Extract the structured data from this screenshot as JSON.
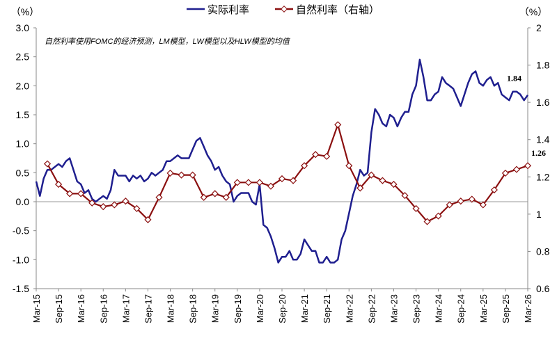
{
  "chart_data": {
    "type": "line",
    "y_axis_label": "（%）",
    "y2_axis_label": "（%）",
    "annotation": "自然利率使用FOMC的经济预测，LM模型，LW模型以及HLW模型的均值",
    "ylim": [
      -1.5,
      3.0
    ],
    "yticks": [
      {
        "value": -1.5,
        "label": "-1.5"
      },
      {
        "value": -1.0,
        "label": "-1.0"
      },
      {
        "value": -0.5,
        "label": "-0.5"
      },
      {
        "value": 0.0,
        "label": "0.0"
      },
      {
        "value": 0.5,
        "label": "0.5"
      },
      {
        "value": 1.0,
        "label": "1.0"
      },
      {
        "value": 1.5,
        "label": "1.5"
      },
      {
        "value": 2.0,
        "label": "2.0"
      },
      {
        "value": 2.5,
        "label": "2.5"
      },
      {
        "value": 3.0,
        "label": "3.0"
      }
    ],
    "y2lim": [
      0.6,
      2
    ],
    "y2ticks": [
      0.6,
      0.8,
      1,
      1.2,
      1.4,
      1.6,
      1.8,
      2
    ],
    "xticks": [
      "Mar-15",
      "Sep-15",
      "Mar-16",
      "Sep-16",
      "Mar-17",
      "Sep-17",
      "Mar-18",
      "Sep-18",
      "Mar-19",
      "Sep-19",
      "Mar-20",
      "Sep-20",
      "Mar-21",
      "Sep-21",
      "Mar-22",
      "Sep-22",
      "Mar-23",
      "Sep-23",
      "Mar-24",
      "Sep-24",
      "Mar-25",
      "Sep-25",
      "Mar-26"
    ],
    "legend": "top",
    "series": [
      {
        "name": "实际利率",
        "color": "#1f1f8f",
        "x": [
          "Mar-15",
          "Apr-15",
          "May-15",
          "Jun-15",
          "Jul-15",
          "Aug-15",
          "Sep-15",
          "Oct-15",
          "Nov-15",
          "Dec-15",
          "Jan-16",
          "Feb-16",
          "Mar-16",
          "Apr-16",
          "May-16",
          "Jun-16",
          "Jul-16",
          "Aug-16",
          "Sep-16",
          "Oct-16",
          "Nov-16",
          "Dec-16",
          "Jan-17",
          "Feb-17",
          "Mar-17",
          "Apr-17",
          "May-17",
          "Jun-17",
          "Jul-17",
          "Aug-17",
          "Sep-17",
          "Oct-17",
          "Nov-17",
          "Dec-17",
          "Jan-18",
          "Feb-18",
          "Mar-18",
          "Apr-18",
          "May-18",
          "Jun-18",
          "Jul-18",
          "Aug-18",
          "Sep-18",
          "Oct-18",
          "Nov-18",
          "Dec-18",
          "Jan-19",
          "Feb-19",
          "Mar-19",
          "Apr-19",
          "May-19",
          "Jun-19",
          "Jul-19",
          "Aug-19",
          "Sep-19",
          "Oct-19",
          "Nov-19",
          "Dec-19",
          "Jan-20",
          "Feb-20",
          "Mar-20",
          "Apr-20",
          "May-20",
          "Jun-20",
          "Jul-20",
          "Aug-20",
          "Sep-20",
          "Oct-20",
          "Nov-20",
          "Dec-20",
          "Jan-21",
          "Feb-21",
          "Mar-21",
          "Apr-21",
          "May-21",
          "Jun-21",
          "Jul-21",
          "Aug-21",
          "Sep-21",
          "Oct-21",
          "Nov-21",
          "Dec-21",
          "Jan-22",
          "Feb-22",
          "Mar-22",
          "Apr-22",
          "May-22",
          "Jun-22",
          "Jul-22",
          "Aug-22",
          "Sep-22",
          "Oct-22",
          "Nov-22",
          "Dec-22",
          "Jan-23",
          "Feb-23",
          "Mar-23",
          "Apr-23",
          "May-23",
          "Jun-23",
          "Jul-23",
          "Aug-23",
          "Sep-23",
          "Oct-23",
          "Nov-23",
          "Dec-23",
          "Jan-24",
          "Feb-24",
          "Mar-24",
          "Apr-24",
          "May-24",
          "Jun-24",
          "Jul-24",
          "Aug-24",
          "Sep-24",
          "Oct-24",
          "Nov-24",
          "Dec-24",
          "Jan-25",
          "Feb-25",
          "Mar-25",
          "Apr-25",
          "May-25",
          "Jun-25",
          "Jul-25",
          "Aug-25",
          "Sep-25",
          "Oct-25",
          "Nov-25",
          "Dec-25",
          "Jan-26",
          "Feb-26",
          "Mar-26"
        ],
        "values": [
          0.35,
          0.1,
          0.4,
          0.55,
          0.55,
          0.6,
          0.65,
          0.6,
          0.7,
          0.75,
          0.55,
          0.35,
          0.3,
          0.15,
          0.2,
          0.05,
          0.0,
          0.05,
          0.1,
          0.05,
          0.2,
          0.55,
          0.45,
          0.45,
          0.45,
          0.35,
          0.45,
          0.4,
          0.45,
          0.35,
          0.4,
          0.5,
          0.45,
          0.5,
          0.55,
          0.7,
          0.7,
          0.75,
          0.8,
          0.75,
          0.75,
          0.75,
          0.9,
          1.05,
          1.1,
          0.95,
          0.8,
          0.7,
          0.55,
          0.6,
          0.45,
          0.35,
          0.3,
          0.0,
          0.1,
          0.15,
          0.15,
          0.15,
          0.0,
          -0.05,
          0.3,
          -0.4,
          -0.45,
          -0.6,
          -0.8,
          -1.05,
          -0.95,
          -0.95,
          -0.85,
          -1.0,
          -1.0,
          -0.9,
          -0.65,
          -0.75,
          -0.85,
          -0.85,
          -1.05,
          -1.05,
          -0.95,
          -1.05,
          -1.05,
          -1.0,
          -0.65,
          -0.5,
          -0.2,
          0.1,
          0.3,
          0.55,
          0.45,
          0.5,
          1.2,
          1.6,
          1.5,
          1.35,
          1.3,
          1.5,
          1.45,
          1.3,
          1.45,
          1.55,
          1.55,
          1.85,
          2.0,
          2.45,
          2.15,
          1.75,
          1.75,
          1.85,
          1.9,
          2.15,
          2.05,
          2.0,
          1.95,
          1.8,
          1.65,
          1.85,
          2.05,
          2.2,
          2.25,
          2.05,
          2.0,
          2.1,
          2.15,
          2.0,
          2.05,
          1.85,
          1.8,
          1.75,
          1.9,
          1.9,
          1.85,
          1.75,
          1.84
        ]
      },
      {
        "name": "自然利率（右轴）",
        "color": "#8b1010",
        "axis": "y2",
        "x": [
          "Jun-15",
          "Sep-15",
          "Dec-15",
          "Mar-16",
          "Jun-16",
          "Sep-16",
          "Dec-16",
          "Mar-17",
          "Jun-17",
          "Sep-17",
          "Dec-17",
          "Mar-18",
          "Jun-18",
          "Sep-18",
          "Dec-18",
          "Mar-19",
          "Jun-19",
          "Sep-19",
          "Dec-19",
          "Mar-20",
          "Jun-20",
          "Sep-20",
          "Dec-20",
          "Mar-21",
          "Jun-21",
          "Sep-21",
          "Dec-21",
          "Mar-22",
          "Jun-22",
          "Sep-22",
          "Dec-22",
          "Mar-23",
          "Jun-23",
          "Sep-23",
          "Dec-23",
          "Mar-24",
          "Jun-24",
          "Sep-24",
          "Dec-24",
          "Mar-25",
          "Jun-25",
          "Sep-25",
          "Dec-25",
          "Mar-26"
        ],
        "values": [
          1.27,
          1.16,
          1.11,
          1.11,
          1.06,
          1.04,
          1.05,
          1.07,
          1.03,
          0.97,
          1.09,
          1.22,
          1.21,
          1.21,
          1.09,
          1.11,
          1.09,
          1.17,
          1.17,
          1.17,
          1.15,
          1.19,
          1.18,
          1.26,
          1.32,
          1.31,
          1.48,
          1.26,
          1.14,
          1.21,
          1.18,
          1.16,
          1.1,
          1.03,
          0.96,
          0.99,
          1.05,
          1.07,
          1.08,
          1.05,
          1.13,
          1.22,
          1.24,
          1.26
        ]
      }
    ]
  }
}
